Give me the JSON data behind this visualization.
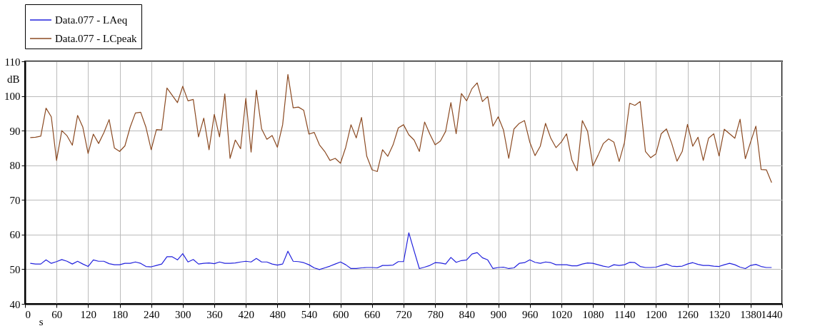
{
  "chart_data": {
    "type": "line",
    "xlabel": "s",
    "ylabel": "dB",
    "x": [
      10,
      20,
      30,
      40,
      50,
      60,
      70,
      80,
      90,
      100,
      110,
      120,
      130,
      140,
      150,
      160,
      170,
      180,
      190,
      200,
      210,
      220,
      230,
      240,
      250,
      260,
      270,
      280,
      290,
      300,
      310,
      320,
      330,
      340,
      350,
      360,
      370,
      380,
      390,
      400,
      410,
      420,
      430,
      440,
      450,
      460,
      470,
      480,
      490,
      500,
      510,
      520,
      530,
      540,
      550,
      560,
      570,
      580,
      590,
      600,
      610,
      620,
      630,
      640,
      650,
      660,
      670,
      680,
      690,
      700,
      710,
      720,
      730,
      740,
      750,
      760,
      770,
      780,
      790,
      800,
      810,
      820,
      830,
      840,
      850,
      860,
      870,
      880,
      890,
      900,
      910,
      920,
      930,
      940,
      950,
      960,
      970,
      980,
      990,
      1000,
      1010,
      1020,
      1030,
      1040,
      1050,
      1060,
      1070,
      1080,
      1090,
      1100,
      1110,
      1120,
      1130,
      1140,
      1150,
      1160,
      1170,
      1180,
      1190,
      1200,
      1210,
      1220,
      1230,
      1240,
      1250,
      1260,
      1270,
      1280,
      1290,
      1300,
      1310,
      1320,
      1330,
      1340,
      1350,
      1360,
      1370,
      1380,
      1390,
      1400,
      1410,
      1420
    ],
    "series": [
      {
        "name": "Data.077 - LAeq",
        "color": "#2222dd",
        "values": [
          51.7,
          51.5,
          51.5,
          52.7,
          51.7,
          52.2,
          52.8,
          52.3,
          51.5,
          52.3,
          51.5,
          50.8,
          52.7,
          52.3,
          52.3,
          51.6,
          51.3,
          51.3,
          51.7,
          51.7,
          52.1,
          51.7,
          50.8,
          50.7,
          51.1,
          51.5,
          53.6,
          53.6,
          52.7,
          54.5,
          52.1,
          52.8,
          51.5,
          51.7,
          51.8,
          51.6,
          52.1,
          51.7,
          51.7,
          51.8,
          52.1,
          52.3,
          52.1,
          53.1,
          52.1,
          52.1,
          51.5,
          51.2,
          51.5,
          55.2,
          52.3,
          52.2,
          51.9,
          51.3,
          50.4,
          49.9,
          50.4,
          50.9,
          51.5,
          52.1,
          51.3,
          50.2,
          50.2,
          50.4,
          50.5,
          50.5,
          50.4,
          51.1,
          51.1,
          51.2,
          52.2,
          52.2,
          60.5,
          55.3,
          50.2,
          50.6,
          51.1,
          51.9,
          51.8,
          51.5,
          53.4,
          52.0,
          52.5,
          52.7,
          54.4,
          54.8,
          53.3,
          52.7,
          50.2,
          50.5,
          50.6,
          50.2,
          50.4,
          51.7,
          51.9,
          52.7,
          52.0,
          51.7,
          52.1,
          51.9,
          51.3,
          51.3,
          51.3,
          51.0,
          51.0,
          51.5,
          51.8,
          51.7,
          51.3,
          50.9,
          50.6,
          51.3,
          51.1,
          51.3,
          52.0,
          51.9,
          50.8,
          50.5,
          50.5,
          50.6,
          51.1,
          51.5,
          50.9,
          50.8,
          50.9,
          51.5,
          51.9,
          51.4,
          51.1,
          51.1,
          50.9,
          50.8,
          51.3,
          51.7,
          51.3,
          50.6,
          50.2,
          51.1,
          51.4,
          50.8,
          50.5,
          50.5
        ]
      },
      {
        "name": "Data.077 - LCpeak",
        "color": "#8b4a22",
        "values": [
          88.0,
          88.1,
          88.4,
          96.5,
          94.0,
          81.4,
          90.0,
          88.5,
          85.8,
          94.4,
          91.0,
          83.4,
          89.0,
          86.3,
          89.4,
          93.2,
          85.0,
          84.0,
          85.6,
          91.0,
          95.1,
          95.3,
          91.0,
          84.5,
          90.3,
          90.2,
          102.3,
          100.2,
          98.1,
          102.8,
          98.6,
          99.0,
          88.2,
          93.6,
          84.5,
          94.7,
          88.2,
          100.6,
          82.0,
          87.3,
          84.8,
          99.3,
          83.8,
          101.7,
          90.5,
          87.5,
          88.6,
          85.2,
          91.7,
          106.2,
          96.6,
          96.8,
          95.9,
          89.0,
          89.5,
          85.9,
          84.0,
          81.4,
          82.0,
          80.6,
          85.2,
          91.7,
          87.9,
          93.8,
          82.6,
          78.7,
          78.2,
          84.5,
          82.6,
          85.9,
          90.8,
          91.7,
          88.8,
          87.3,
          84.0,
          92.5,
          89.0,
          85.9,
          87.0,
          89.8,
          98.1,
          89.1,
          100.7,
          98.6,
          102.1,
          103.8,
          98.4,
          99.9,
          91.3,
          94.0,
          90.2,
          82.0,
          90.5,
          92.1,
          92.9,
          86.7,
          82.8,
          85.5,
          92.1,
          87.8,
          85.1,
          86.7,
          89.1,
          81.6,
          78.4,
          92.9,
          89.8,
          79.8,
          82.9,
          86.3,
          87.6,
          86.7,
          81.1,
          86.5,
          97.9,
          97.3,
          98.4,
          84.0,
          82.2,
          83.3,
          89.1,
          90.5,
          86.3,
          81.2,
          84.0,
          91.8,
          85.5,
          88.1,
          81.4,
          87.8,
          89.1,
          82.7,
          90.4,
          89.1,
          87.8,
          93.3,
          81.9,
          86.7,
          91.3,
          78.8,
          78.7,
          75.0
        ]
      }
    ],
    "xlim": [
      0,
      1440
    ],
    "xticks": [
      0,
      60,
      120,
      180,
      240,
      300,
      360,
      420,
      480,
      540,
      600,
      660,
      720,
      780,
      840,
      900,
      960,
      1020,
      1080,
      1140,
      1200,
      1260,
      1320,
      1380,
      1440
    ],
    "ylim": [
      40,
      110
    ],
    "yticks": [
      40,
      50,
      60,
      70,
      80,
      90,
      100,
      110
    ],
    "grid": true,
    "legend": "top",
    "line_style": "solid",
    "marker": "none"
  }
}
